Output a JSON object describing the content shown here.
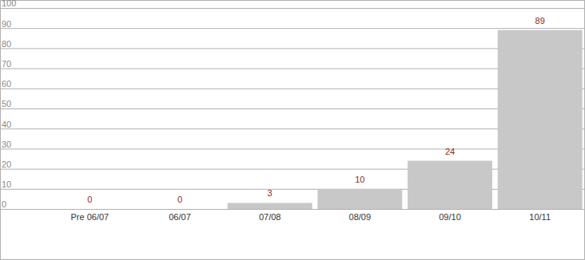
{
  "chart_data": {
    "type": "bar",
    "categories": [
      "Pre 06/07",
      "06/07",
      "07/08",
      "08/09",
      "09/10",
      "10/11"
    ],
    "values": [
      0,
      0,
      3,
      10,
      24,
      89
    ],
    "color": "#c8c8c8",
    "ylim": [
      0,
      100
    ],
    "yticks": [
      0,
      10,
      20,
      30,
      40,
      50,
      60,
      70,
      80,
      90,
      100
    ],
    "grid": true,
    "data_labels": true
  }
}
